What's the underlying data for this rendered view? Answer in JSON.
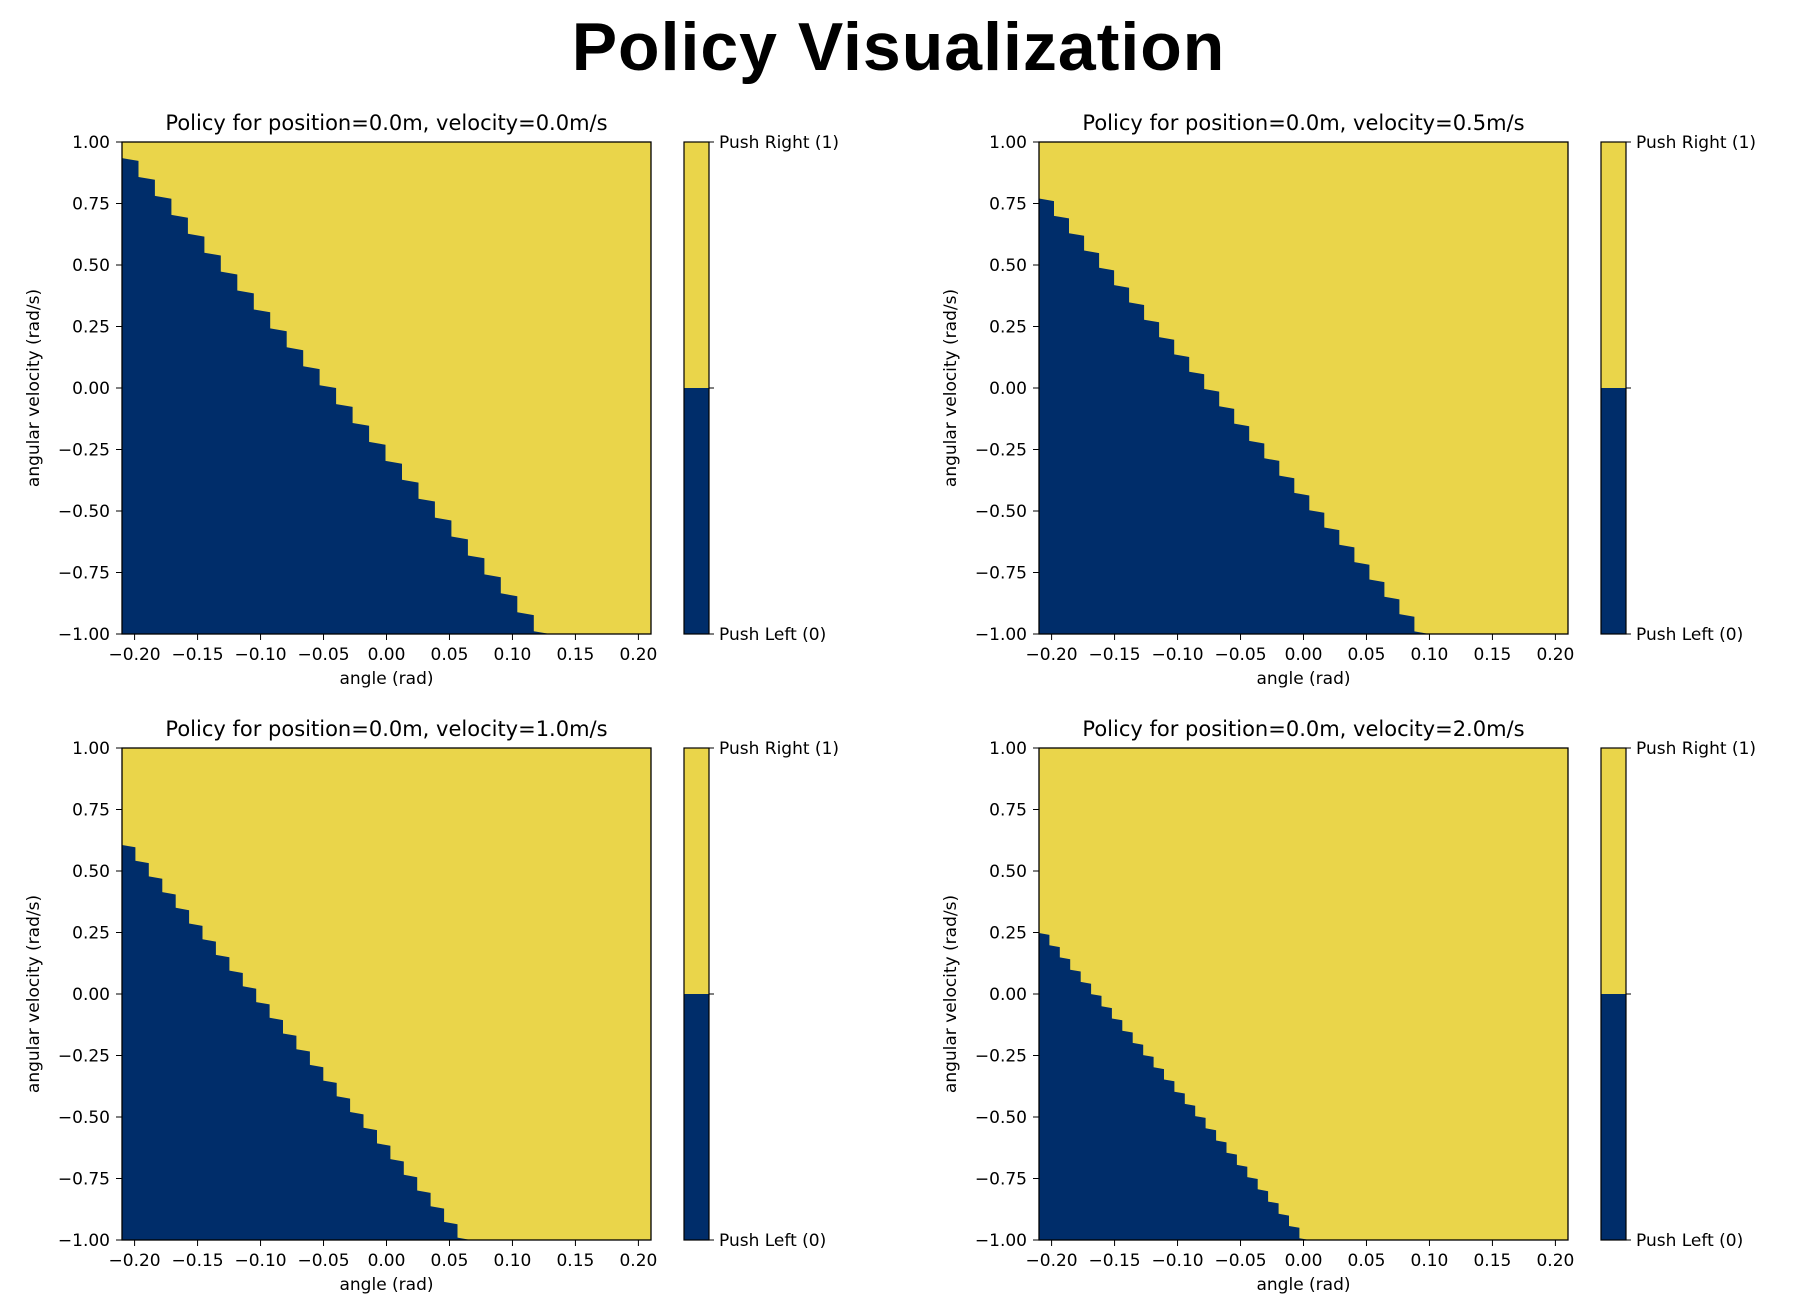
{
  "page_title": "Policy Visualization",
  "colors": {
    "push_right": "#EAD54A",
    "push_left": "#002D6A"
  },
  "chart_data": [
    {
      "type": "heatmap",
      "title": "Policy for position=0.0m, velocity=0.0m/s",
      "xlabel": "angle (rad)",
      "ylabel": "angular velocity (rad/s)",
      "xlim": [
        -0.21,
        0.21
      ],
      "ylim": [
        -1.0,
        1.0
      ],
      "xticks": [
        "−0.20",
        "−0.15",
        "−0.10",
        "−0.05",
        "0.00",
        "0.05",
        "0.10",
        "0.15",
        "0.20"
      ],
      "yticks": [
        "1.00",
        "0.75",
        "0.50",
        "0.25",
        "0.00",
        "−0.25",
        "−0.50",
        "−0.75",
        "−1.00"
      ],
      "colorbar": [
        "Push Right (1)",
        "Push Left (0)"
      ],
      "boundary": [
        [
          -0.21,
          1.0
        ],
        [
          0.13,
          -1.0
        ]
      ]
    },
    {
      "type": "heatmap",
      "title": "Policy for position=0.0m, velocity=0.5m/s",
      "xlabel": "angle (rad)",
      "ylabel": "angular velocity (rad/s)",
      "xlim": [
        -0.21,
        0.21
      ],
      "ylim": [
        -1.0,
        1.0
      ],
      "xticks": [
        "−0.20",
        "−0.15",
        "−0.10",
        "−0.05",
        "0.00",
        "0.05",
        "0.10",
        "0.15",
        "0.20"
      ],
      "yticks": [
        "1.00",
        "0.75",
        "0.50",
        "0.25",
        "0.00",
        "−0.25",
        "−0.50",
        "−0.75",
        "−1.00"
      ],
      "colorbar": [
        "Push Right (1)",
        "Push Left (0)"
      ],
      "boundary": [
        [
          -0.21,
          0.83
        ],
        [
          0.1,
          -1.0
        ]
      ]
    },
    {
      "type": "heatmap",
      "title": "Policy for position=0.0m, velocity=1.0m/s",
      "xlabel": "angle (rad)",
      "ylabel": "angular velocity (rad/s)",
      "xlim": [
        -0.21,
        0.21
      ],
      "ylim": [
        -1.0,
        1.0
      ],
      "xticks": [
        "−0.20",
        "−0.15",
        "−0.10",
        "−0.05",
        "0.00",
        "0.05",
        "0.10",
        "0.15",
        "0.20"
      ],
      "yticks": [
        "1.00",
        "0.75",
        "0.50",
        "0.25",
        "0.00",
        "−0.25",
        "−0.50",
        "−0.75",
        "−1.00"
      ],
      "colorbar": [
        "Push Right (1)",
        "Push Left (0)"
      ],
      "boundary": [
        [
          -0.21,
          0.66
        ],
        [
          0.067,
          -1.0
        ]
      ]
    },
    {
      "type": "heatmap",
      "title": "Policy for position=0.0m, velocity=2.0m/s",
      "xlabel": "angle (rad)",
      "ylabel": "angular velocity (rad/s)",
      "xlim": [
        -0.21,
        0.21
      ],
      "ylim": [
        -1.0,
        1.0
      ],
      "xticks": [
        "−0.20",
        "−0.15",
        "−0.10",
        "−0.05",
        "0.00",
        "0.05",
        "0.10",
        "0.15",
        "0.20"
      ],
      "yticks": [
        "1.00",
        "0.75",
        "0.50",
        "0.25",
        "0.00",
        "−0.25",
        "−0.50",
        "−0.75",
        "−1.00"
      ],
      "colorbar": [
        "Push Right (1)",
        "Push Left (0)"
      ],
      "boundary": [
        [
          -0.21,
          0.29
        ],
        [
          0.005,
          -1.0
        ]
      ]
    }
  ]
}
